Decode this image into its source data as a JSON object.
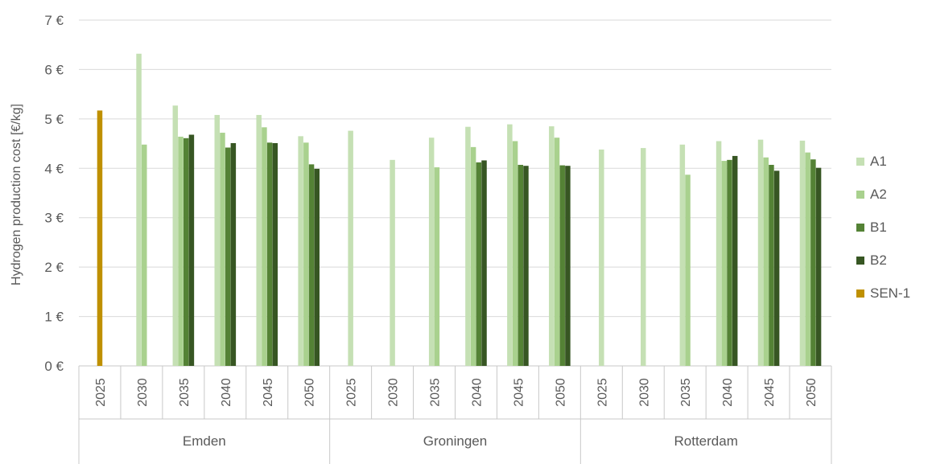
{
  "chart_data": {
    "type": "bar",
    "ylabel": "Hydrogen production cost [€/kg]",
    "ylim": [
      0,
      7
    ],
    "yticks": [
      "0 €",
      "1 €",
      "2 €",
      "3 €",
      "4 €",
      "5 €",
      "6 €",
      "7 €"
    ],
    "grid": true,
    "legend_position": "right",
    "groups": [
      {
        "name": "Emden",
        "years": [
          "2025",
          "2030",
          "2035",
          "2040",
          "2045",
          "2050"
        ]
      },
      {
        "name": "Groningen",
        "years": [
          "2025",
          "2030",
          "2035",
          "2040",
          "2045",
          "2050"
        ]
      },
      {
        "name": "Rotterdam",
        "years": [
          "2025",
          "2030",
          "2035",
          "2040",
          "2045",
          "2050"
        ]
      }
    ],
    "series": [
      {
        "name": "A1",
        "color": "#c5e0b4",
        "values": [
          null,
          6.32,
          5.27,
          5.08,
          5.08,
          4.65,
          4.76,
          4.17,
          4.62,
          4.84,
          4.89,
          4.85,
          4.38,
          4.41,
          4.48,
          4.55,
          4.58,
          4.56
        ]
      },
      {
        "name": "A2",
        "color": "#a9d18e",
        "values": [
          null,
          4.48,
          4.64,
          4.72,
          4.83,
          4.52,
          null,
          null,
          4.02,
          4.43,
          4.55,
          4.62,
          null,
          null,
          3.87,
          4.15,
          4.22,
          4.32
        ]
      },
      {
        "name": "B1",
        "color": "#548235",
        "values": [
          null,
          null,
          4.61,
          4.42,
          4.52,
          4.08,
          null,
          null,
          null,
          4.12,
          4.07,
          4.06,
          null,
          null,
          null,
          4.17,
          4.07,
          4.18
        ]
      },
      {
        "name": "B2",
        "color": "#375623",
        "values": [
          null,
          null,
          4.68,
          4.51,
          4.51,
          3.99,
          null,
          null,
          null,
          4.16,
          4.05,
          4.05,
          null,
          null,
          null,
          4.25,
          3.95,
          4.01
        ]
      },
      {
        "name": "SEN-1",
        "color": "#bf9000",
        "values": [
          5.17,
          null,
          null,
          null,
          null,
          null,
          null,
          null,
          null,
          null,
          null,
          null,
          null,
          null,
          null,
          null,
          null,
          null
        ]
      }
    ]
  }
}
